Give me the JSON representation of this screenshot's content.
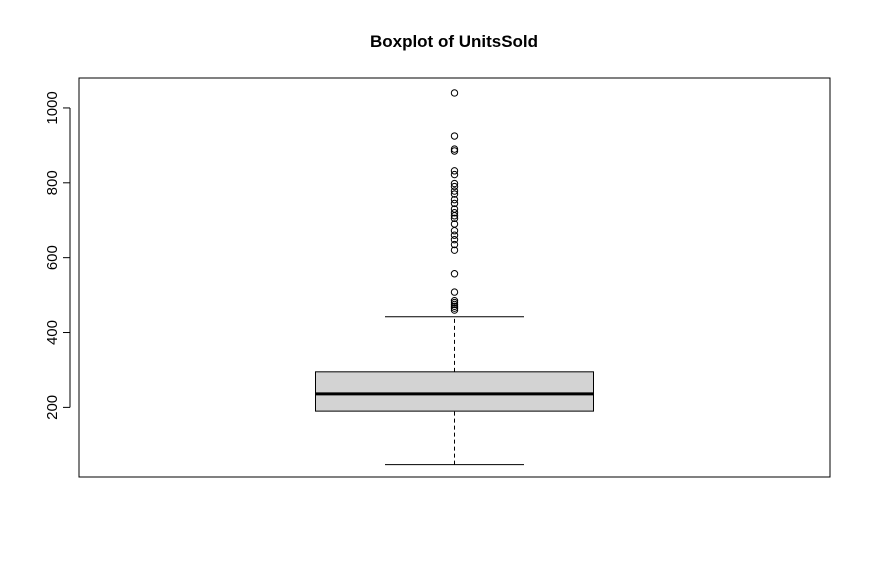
{
  "chart_data": {
    "type": "boxplot",
    "title": "Boxplot of UnitsSold",
    "xlabel": "",
    "ylabel": "",
    "ylim": [
      14,
      1080
    ],
    "y_ticks": [
      200,
      400,
      600,
      800,
      1000
    ],
    "y_tick_labels": [
      "200",
      "400",
      "600",
      "800",
      "1000"
    ],
    "grid": false,
    "box": {
      "min": 47,
      "q1": 190,
      "median": 236,
      "q3": 295,
      "max": 442,
      "fill": "#d3d3d3"
    },
    "outliers": [
      460,
      465,
      470,
      475,
      480,
      485,
      508,
      557,
      620,
      635,
      648,
      660,
      672,
      690,
      705,
      712,
      720,
      730,
      745,
      755,
      770,
      778,
      790,
      798,
      822,
      832,
      885,
      890,
      925,
      1040
    ]
  }
}
